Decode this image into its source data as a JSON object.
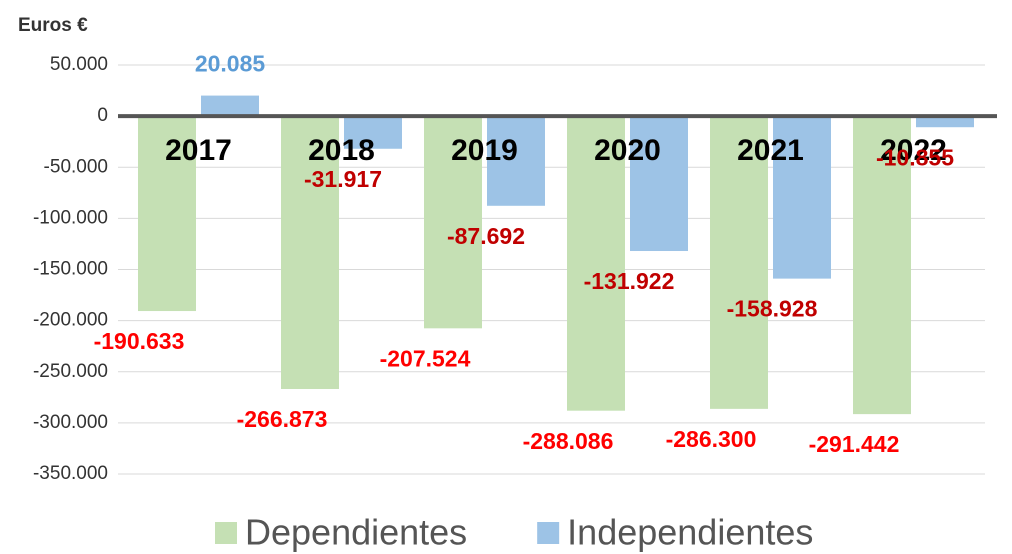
{
  "chart_data": {
    "type": "bar",
    "y_label": "Euros €",
    "categories": [
      "2017",
      "2018",
      "2019",
      "2020",
      "2021",
      "2022"
    ],
    "series": [
      {
        "name": "Dependientes",
        "color": "#c5e0b4",
        "label_color": "#ff0000",
        "values": [
          -190633,
          -266873,
          -207524,
          -288086,
          -286300,
          -291442
        ],
        "value_labels": [
          "-190.633",
          "-266.873",
          "-207.524",
          "-288.086",
          "-286.300",
          "-291.442"
        ]
      },
      {
        "name": "Independientes",
        "color": "#9dc3e6",
        "label_color": "#c00000",
        "values": [
          20085,
          -31917,
          -87692,
          -131922,
          -158928,
          -10855
        ],
        "value_labels": [
          "20.085",
          "-31.917",
          "-87.692",
          "-131.922",
          "-158.928",
          "-10.855"
        ]
      }
    ],
    "ylim": [
      -350000,
      50000
    ],
    "yticks": [
      {
        "value": 50000,
        "label": "50.000"
      },
      0,
      {
        "value": -50000,
        "label": "-50.000"
      },
      {
        "value": -100000,
        "label": "-100.000"
      },
      {
        "value": -150000,
        "label": "-150.000"
      },
      {
        "value": -200000,
        "label": "-200.000"
      },
      {
        "value": -250000,
        "label": "-250.000"
      },
      {
        "value": -300000,
        "label": "-300.000"
      },
      {
        "value": -350000,
        "label": "-350.000"
      }
    ],
    "grid": true,
    "legend": "bottom"
  }
}
